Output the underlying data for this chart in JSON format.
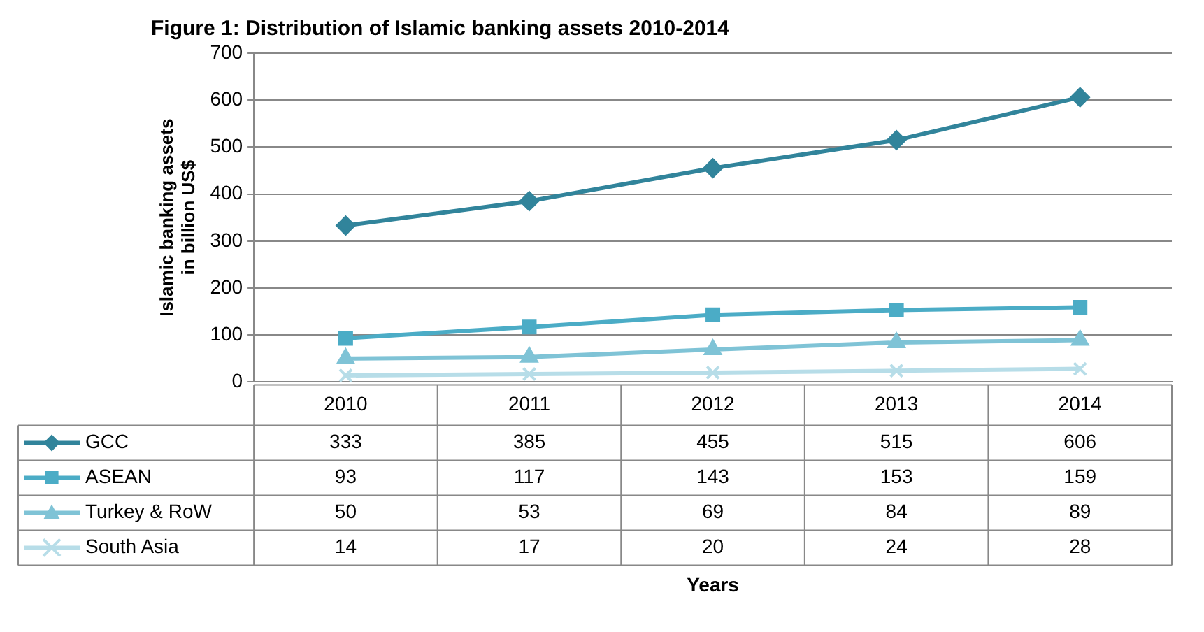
{
  "chart_data": {
    "type": "line",
    "title": "Figure 1: Distribution of Islamic banking assets 2010-2014",
    "annotations": [
      "Years"
    ],
    "ylabel": "Islamic banking assets in billion US$",
    "categories": [
      "2010",
      "2011",
      "2012",
      "2013",
      "2014"
    ],
    "series": [
      {
        "name": "GCC",
        "color": "#31849b",
        "marker": "diamond",
        "values": [
          333,
          385,
          455,
          515,
          606
        ]
      },
      {
        "name": "ASEAN",
        "color": "#4bacc6",
        "marker": "square",
        "values": [
          93,
          117,
          143,
          153,
          159
        ]
      },
      {
        "name": "Turkey & RoW",
        "color": "#7fc3d6",
        "marker": "triangle",
        "values": [
          50,
          53,
          69,
          84,
          89
        ]
      },
      {
        "name": "South Asia",
        "color": "#b7dde8",
        "marker": "cross",
        "values": [
          14,
          17,
          20,
          24,
          28
        ]
      }
    ],
    "ylim": [
      0,
      700
    ],
    "yticks": [
      0,
      100,
      200,
      300,
      400,
      500,
      600,
      700
    ],
    "grid": "y",
    "legend": "bottom left",
    "data_labels": true
  }
}
